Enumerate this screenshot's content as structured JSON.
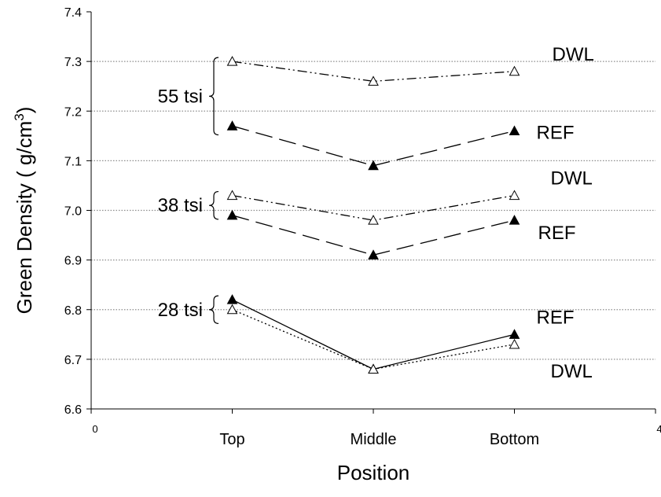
{
  "chart_data": {
    "type": "line",
    "title": "",
    "xlabel": "Position",
    "ylabel": "Green Density ( g/cm",
    "ylabel_sup": "3",
    "ylabel_end": ")",
    "xlim": [
      0,
      4
    ],
    "ylim": [
      6.6,
      7.4
    ],
    "grid": "horizontal-dotted",
    "x_tick_labels": [
      "0",
      "4"
    ],
    "y_ticks": [
      "6.6",
      "6.7",
      "6.8",
      "6.9",
      "7.0",
      "7.1",
      "7.2",
      "7.3",
      "7.4"
    ],
    "categories": [
      "Top",
      "Middle",
      "Bottom"
    ],
    "x": [
      1,
      2,
      3
    ],
    "series": [
      {
        "name": "DWL",
        "group": "55 tsi",
        "marker": "open-triangle",
        "dash": "dash-dot-dot",
        "values": [
          7.3,
          7.26,
          7.28
        ]
      },
      {
        "name": "REF",
        "group": "55 tsi",
        "marker": "filled-triangle",
        "dash": "long-dash",
        "values": [
          7.17,
          7.09,
          7.16
        ]
      },
      {
        "name": "DWL",
        "group": "38 tsi",
        "marker": "open-triangle",
        "dash": "dash-dot-dot",
        "values": [
          7.03,
          6.98,
          7.03
        ]
      },
      {
        "name": "REF",
        "group": "38 tsi",
        "marker": "filled-triangle",
        "dash": "long-dash",
        "values": [
          6.99,
          6.91,
          6.98
        ]
      },
      {
        "name": "REF",
        "group": "28 tsi",
        "marker": "filled-triangle",
        "dash": "solid",
        "values": [
          6.82,
          6.68,
          6.75
        ]
      },
      {
        "name": "DWL",
        "group": "28 tsi",
        "marker": "open-triangle",
        "dash": "dotted",
        "values": [
          6.8,
          6.68,
          6.73
        ]
      }
    ],
    "annotations": [
      {
        "text": "55 tsi",
        "range": [
          7.16,
          7.3
        ]
      },
      {
        "text": "38 tsi",
        "range": [
          6.99,
          7.03
        ]
      },
      {
        "text": "28 tsi",
        "range": [
          6.78,
          6.82
        ]
      }
    ],
    "series_labels": [
      {
        "text": "DWL",
        "series": 0
      },
      {
        "text": "REF",
        "series": 1
      },
      {
        "text": "DWL",
        "series": 2
      },
      {
        "text": "REF",
        "series": 3
      },
      {
        "text": "REF",
        "series": 4
      },
      {
        "text": "DWL",
        "series": 5
      }
    ]
  }
}
